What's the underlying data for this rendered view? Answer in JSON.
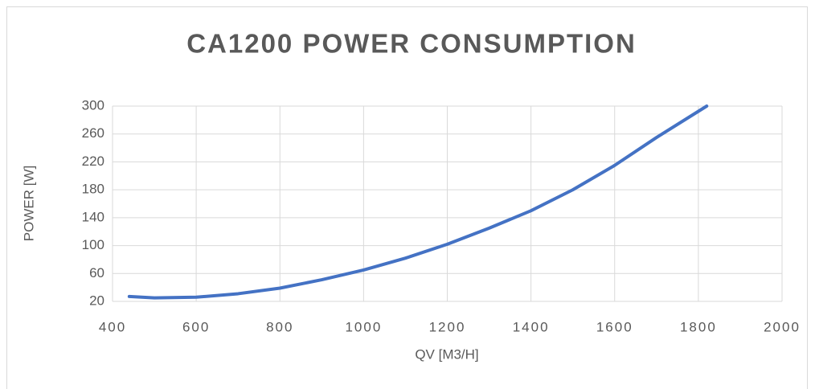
{
  "chart_data": {
    "type": "line",
    "title": "CA1200 POWER CONSUMPTION",
    "x_label": "QV [M3/H]",
    "y_label": "POWER [W]",
    "series": [
      {
        "name": "Power",
        "color": "#4472c4",
        "x": [
          440,
          500,
          600,
          700,
          800,
          900,
          1000,
          1100,
          1200,
          1300,
          1400,
          1500,
          1600,
          1700,
          1820
        ],
        "values": [
          27,
          25,
          26,
          31,
          39,
          51,
          65,
          82,
          102,
          125,
          150,
          180,
          215,
          255,
          300
        ]
      }
    ],
    "xlim": [
      400,
      2000
    ],
    "xticks": [
      400,
      600,
      800,
      1000,
      1200,
      1400,
      1600,
      1800,
      2000
    ],
    "ylim": [
      20,
      300
    ],
    "yticks": [
      20,
      60,
      100,
      140,
      180,
      220,
      260,
      300
    ],
    "grid": true
  }
}
